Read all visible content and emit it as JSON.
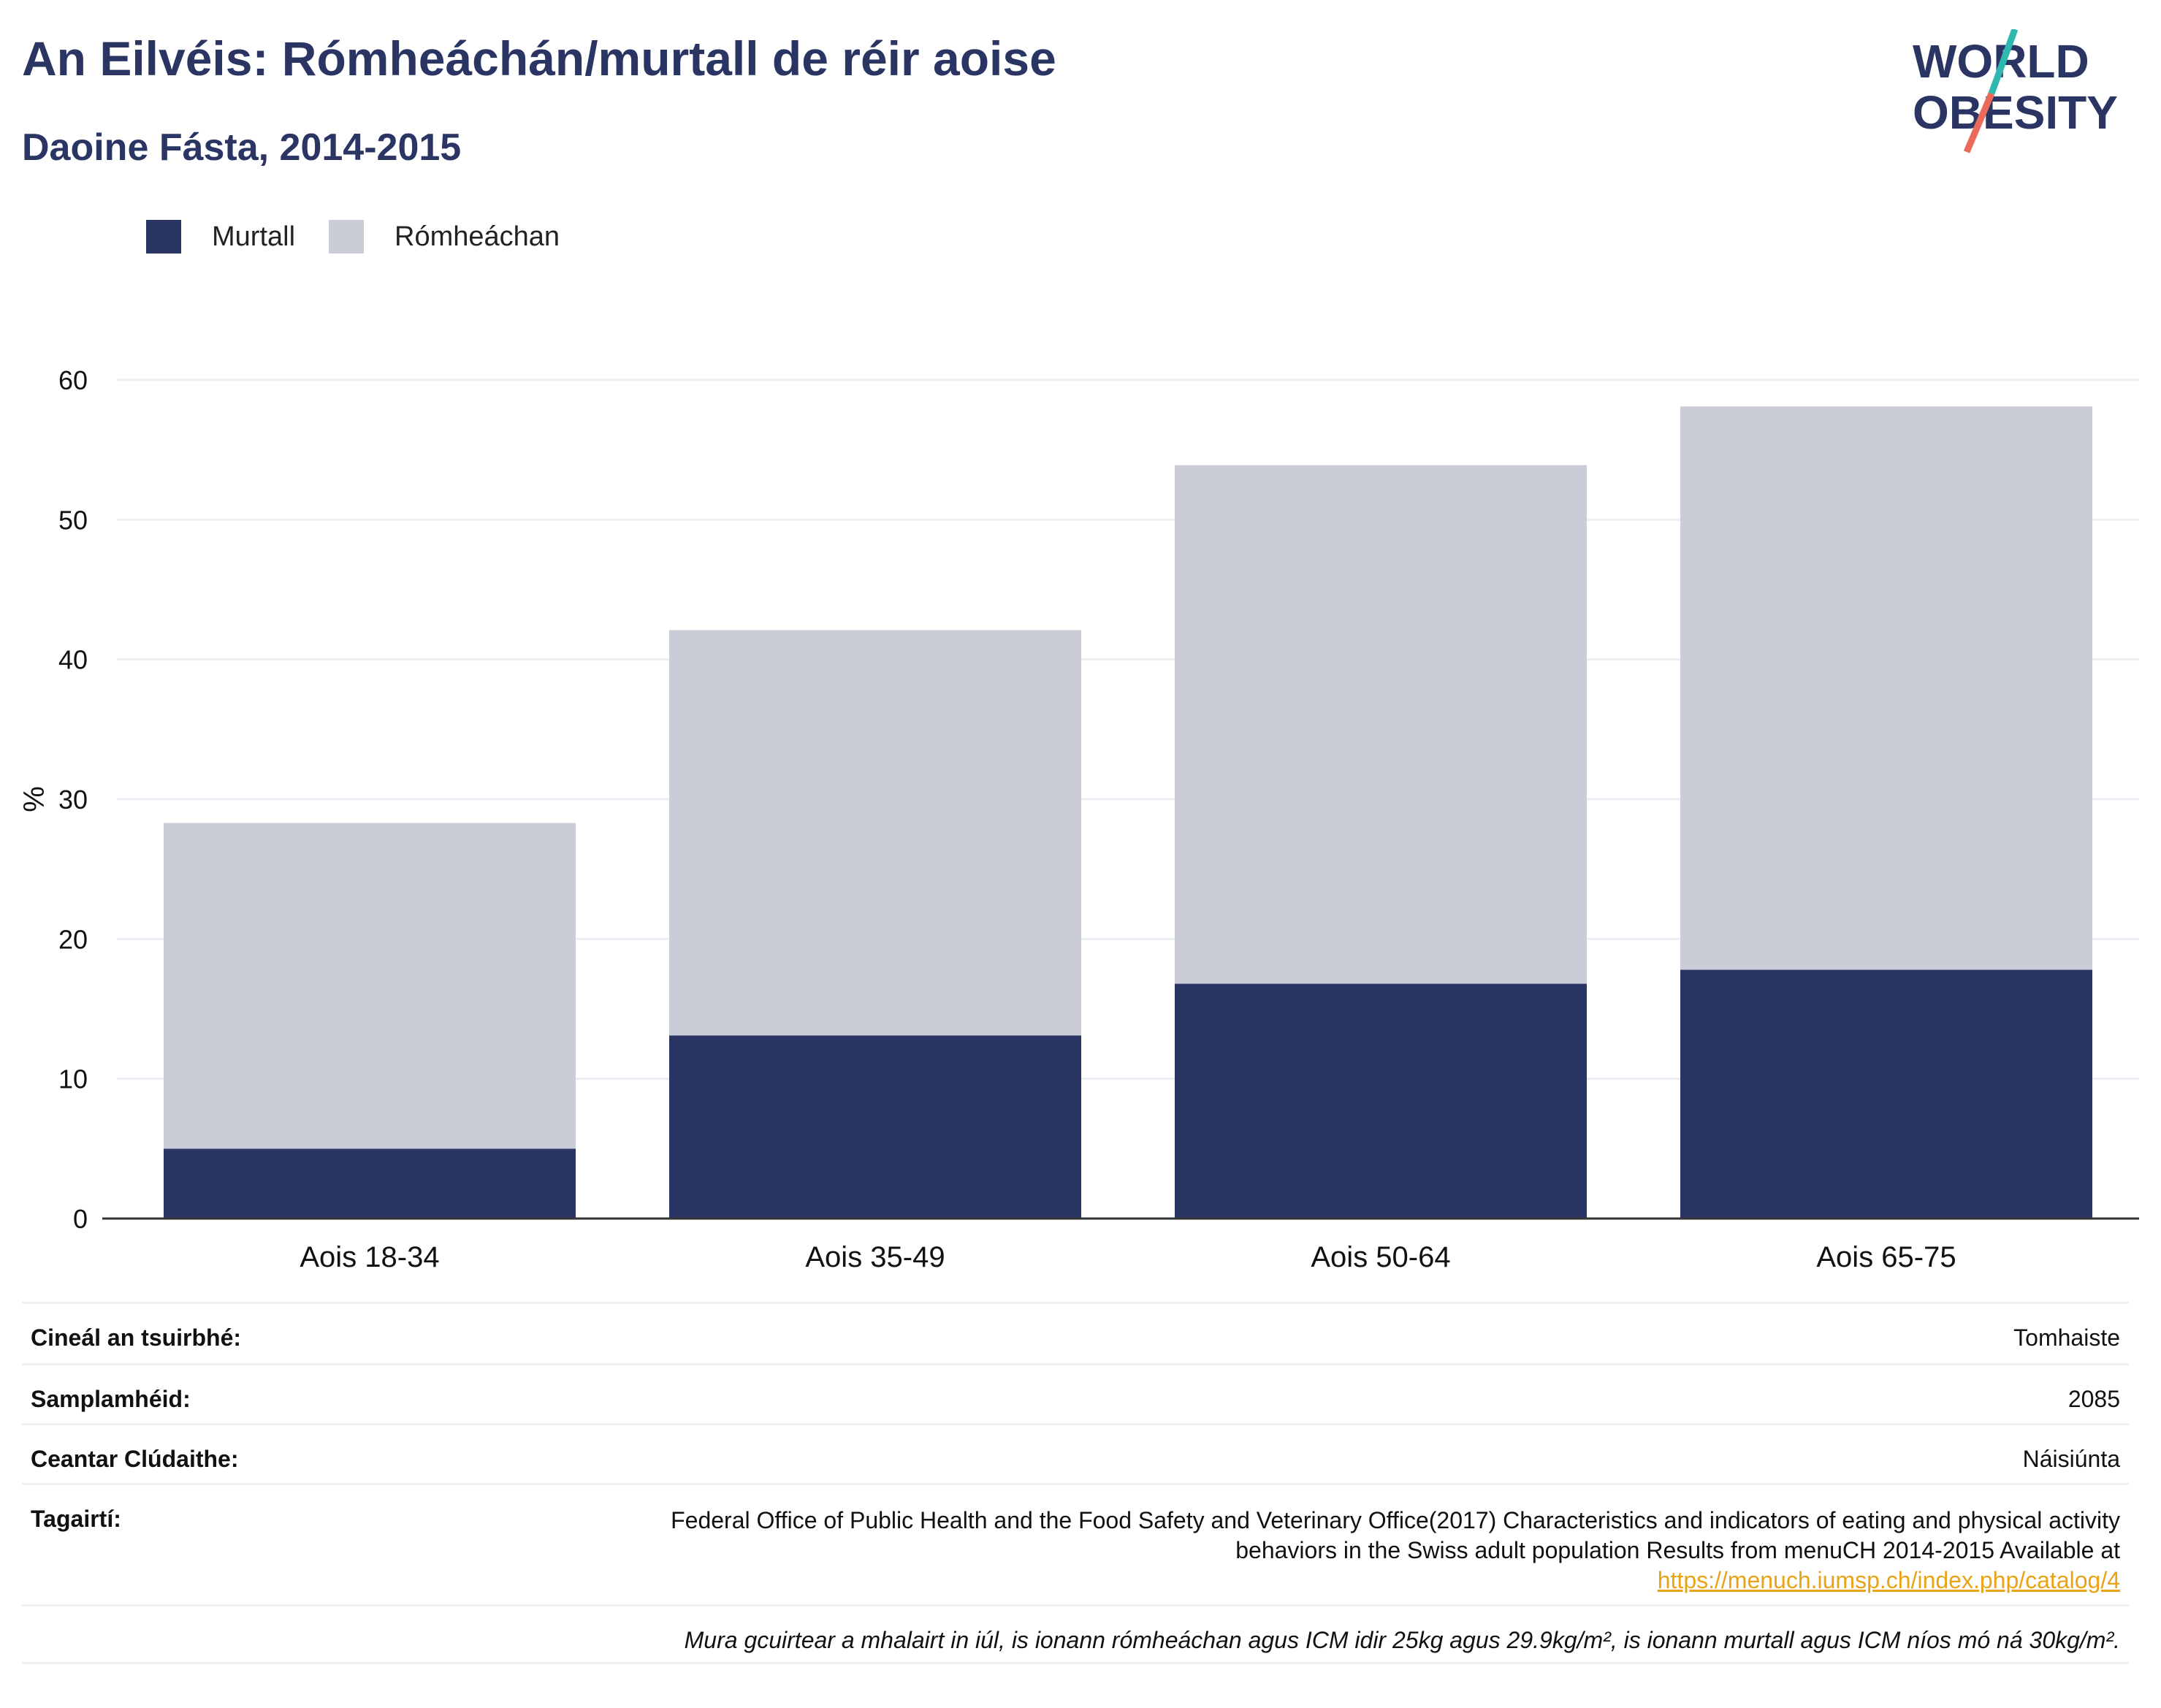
{
  "header": {
    "title": "An Eilvéis: Rómheáchán/murtall de réir aoise",
    "subtitle": "Daoine Fásta, 2014-2015"
  },
  "logo": {
    "line1": "WORLD",
    "line2": "OBESITY",
    "icon": "world-obesity-logo"
  },
  "legend": [
    {
      "label": "Murtall",
      "color": "#2a3564"
    },
    {
      "label": "Rómheáchan",
      "color": "#caccd8"
    }
  ],
  "chart_data": {
    "type": "bar",
    "stacked": true,
    "categories": [
      "Aois 18-34",
      "Aois 35-49",
      "Aois 50-64",
      "Aois 65-75"
    ],
    "series": [
      {
        "name": "Murtall",
        "color": "#2a3564",
        "values": [
          5.0,
          13.1,
          16.8,
          17.8
        ]
      },
      {
        "name": "Rómheáchan",
        "color": "#caccd8",
        "values": [
          23.3,
          29.0,
          37.1,
          40.3
        ]
      }
    ],
    "ylabel": "%",
    "ylim": [
      0,
      60
    ],
    "yticks": [
      0,
      10,
      20,
      30,
      40,
      50,
      60
    ],
    "grid": true,
    "legend_position": "top-left"
  },
  "info": {
    "survey_type_label": "Cineál an tsuirbhé:",
    "survey_type_value": "Tomhaiste",
    "sample_size_label": "Samplamhéid:",
    "sample_size_value": "2085",
    "area_label": "Ceantar Clúdaithe:",
    "area_value": "Náisiúnta",
    "references_label": "Tagairtí:",
    "references_text": "Federal Office of Public Health and the Food Safety and Veterinary Office(2017) Characteristics and indicators of eating and physical activity behaviors in the Swiss adult population Results from menuCH 2014-2015 Available at",
    "references_link": "https://menuch.iumsp.ch/index.php/catalog/4",
    "note": "Mura gcuirtear a mhalairt in iúl, is ionann rómheáchan agus ICM idir 25kg agus 29.9kg/m², is ionann murtall agus ICM níos mó ná 30kg/m²."
  }
}
